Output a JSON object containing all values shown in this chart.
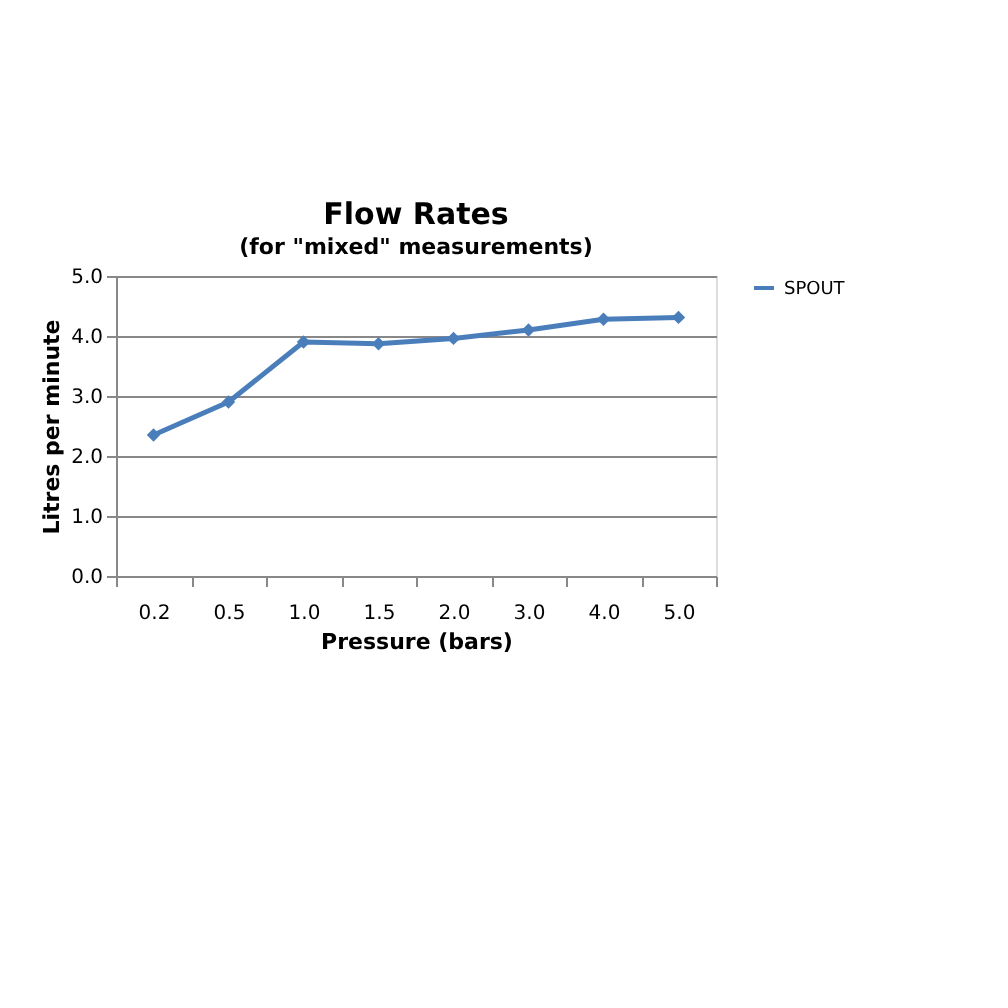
{
  "chart_data": {
    "type": "line",
    "title": "Flow Rates",
    "subtitle": "(for \"mixed\" measurements)",
    "xlabel": "Pressure (bars)",
    "ylabel": "Litres per minute",
    "categories": [
      "0.2",
      "0.5",
      "1.0",
      "1.5",
      "2.0",
      "3.0",
      "4.0",
      "5.0"
    ],
    "series": [
      {
        "name": "SPOUT",
        "color": "#4a7ebb",
        "values": [
          2.35,
          2.9,
          3.9,
          3.87,
          3.96,
          4.1,
          4.28,
          4.31
        ]
      }
    ],
    "ylim": [
      0,
      5
    ],
    "yticks": [
      {
        "value": 0,
        "label": "0.0"
      },
      {
        "value": 1,
        "label": "1.0"
      },
      {
        "value": 2,
        "label": "2.0"
      },
      {
        "value": 3,
        "label": "3.0"
      },
      {
        "value": 4,
        "label": "4.0"
      },
      {
        "value": 5,
        "label": "5.0"
      }
    ],
    "grid": "y",
    "legend": "right",
    "marker": "diamond",
    "line_style": "solid"
  }
}
